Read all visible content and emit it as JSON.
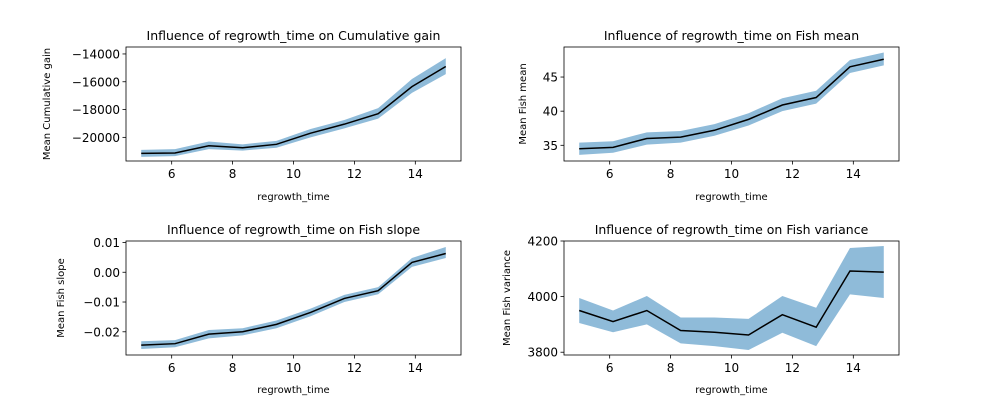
{
  "chart_data": [
    {
      "type": "line",
      "title": "Influence of regrowth_time on Cumulative gain",
      "xlabel": "regrowth_time",
      "ylabel": "Mean Cumulative gain",
      "xlim": [
        4.5,
        15.5
      ],
      "ylim": [
        -21700,
        -13500
      ],
      "xticks": [
        6,
        8,
        10,
        12,
        14
      ],
      "yticks": [
        -20000,
        -18000,
        -16000,
        -14000
      ],
      "x": [
        5,
        6.11,
        7.22,
        8.33,
        9.44,
        10.56,
        11.67,
        12.78,
        13.89,
        15
      ],
      "series": [
        {
          "values": [
            -21150,
            -21120,
            -20600,
            -20750,
            -20500,
            -19700,
            -19050,
            -18300,
            -16350,
            -14900
          ],
          "lower": [
            -21400,
            -21350,
            -20850,
            -20950,
            -20750,
            -20000,
            -19350,
            -18650,
            -16800,
            -15450
          ],
          "upper": [
            -20900,
            -20850,
            -20300,
            -20500,
            -20250,
            -19400,
            -18750,
            -17900,
            -15800,
            -14300
          ]
        }
      ],
      "grid": false,
      "legend": "none"
    },
    {
      "type": "line",
      "title": "Influence of regrowth_time on Fish mean",
      "xlabel": "regrowth_time",
      "ylabel": "Mean Fish mean",
      "xlim": [
        4.5,
        15.5
      ],
      "ylim": [
        32.7,
        49.4
      ],
      "xticks": [
        6,
        8,
        10,
        12,
        14
      ],
      "yticks": [
        35,
        40,
        45
      ],
      "x": [
        5,
        6.11,
        7.22,
        8.33,
        9.44,
        10.56,
        11.67,
        12.78,
        13.89,
        15
      ],
      "series": [
        {
          "values": [
            34.5,
            34.7,
            36.0,
            36.2,
            37.2,
            38.8,
            40.9,
            42.0,
            46.5,
            47.6
          ],
          "lower": [
            33.6,
            33.9,
            35.1,
            35.4,
            36.4,
            37.9,
            40.0,
            41.1,
            45.6,
            46.7
          ],
          "upper": [
            35.4,
            35.6,
            36.9,
            37.1,
            38.1,
            39.7,
            41.9,
            43.0,
            47.5,
            48.6
          ]
        }
      ],
      "grid": false,
      "legend": "none"
    },
    {
      "type": "line",
      "title": "Influence of regrowth_time on Fish slope",
      "xlabel": "regrowth_time",
      "ylabel": "Mean Fish slope",
      "xlim": [
        4.5,
        15.5
      ],
      "ylim": [
        -0.0278,
        0.0105
      ],
      "xticks": [
        6,
        8,
        10,
        12,
        14
      ],
      "yticks": [
        -0.02,
        -0.01,
        0.0,
        0.01
      ],
      "yticklabels": [
        "−0.02",
        "−0.01",
        "0.00",
        "0.01"
      ],
      "x": [
        5,
        6.11,
        7.22,
        8.33,
        9.44,
        10.56,
        11.67,
        12.78,
        13.89,
        15
      ],
      "series": [
        {
          "values": [
            -0.0245,
            -0.024,
            -0.0208,
            -0.02,
            -0.0175,
            -0.0135,
            -0.0088,
            -0.0062,
            0.0033,
            0.0063
          ],
          "lower": [
            -0.0258,
            -0.0252,
            -0.0222,
            -0.0212,
            -0.0188,
            -0.0148,
            -0.01,
            -0.0074,
            0.0018,
            0.0048
          ],
          "upper": [
            -0.0232,
            -0.0228,
            -0.0194,
            -0.0188,
            -0.0162,
            -0.0122,
            -0.0076,
            -0.005,
            0.0048,
            0.0085
          ]
        }
      ],
      "grid": false,
      "legend": "none"
    },
    {
      "type": "line",
      "title": "Influence of regrowth_time on Fish variance",
      "xlabel": "regrowth_time",
      "ylabel": "Mean Fish variance",
      "xlim": [
        4.5,
        15.5
      ],
      "ylim": [
        3790,
        4200
      ],
      "xticks": [
        6,
        8,
        10,
        12,
        14
      ],
      "yticks": [
        3800,
        4000,
        4200
      ],
      "x": [
        5,
        6.11,
        7.22,
        8.33,
        9.44,
        10.56,
        11.67,
        12.78,
        13.89,
        15
      ],
      "series": [
        {
          "values": [
            3950,
            3910,
            3950,
            3878,
            3872,
            3862,
            3935,
            3890,
            4092,
            4088
          ],
          "lower": [
            3905,
            3872,
            3900,
            3832,
            3822,
            3808,
            3870,
            3822,
            4008,
            3995
          ],
          "upper": [
            3995,
            3950,
            4002,
            3925,
            3925,
            3920,
            4002,
            3960,
            4175,
            4182
          ]
        }
      ],
      "grid": false,
      "legend": "none"
    }
  ]
}
